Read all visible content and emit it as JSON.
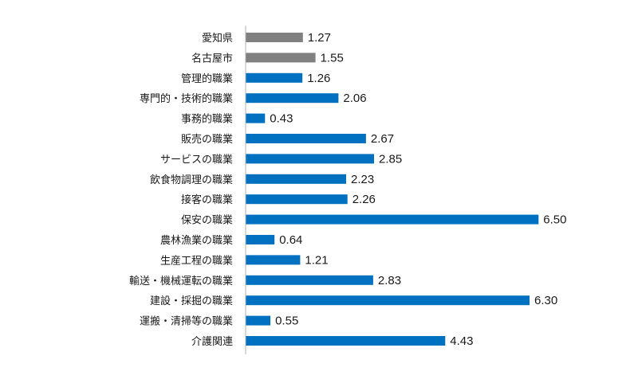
{
  "chart_data": {
    "type": "bar",
    "orientation": "horizontal",
    "categories": [
      "愛知県",
      "名古屋市",
      "管理的職業",
      "専門的・技術的職業",
      "事務的職業",
      "販売の職業",
      "サービスの職業",
      "飲食物調理の職業",
      "接客の職業",
      "保安の職業",
      "農林漁業の職業",
      "生産工程の職業",
      "輸送・機械運転の職業",
      "建設・採掘の職業",
      "運搬・清掃等の職業",
      "介護関連"
    ],
    "values": [
      1.27,
      1.55,
      1.26,
      2.06,
      0.43,
      2.67,
      2.85,
      2.23,
      2.26,
      6.5,
      0.64,
      1.21,
      2.83,
      6.3,
      0.55,
      4.43
    ],
    "value_labels": [
      "1.27",
      "1.55",
      "1.26",
      "2.06",
      "0.43",
      "2.67",
      "2.85",
      "2.23",
      "2.26",
      "6.50",
      "0.64",
      "1.21",
      "2.83",
      "6.30",
      "0.55",
      "4.43"
    ],
    "bar_colors": [
      "#808080",
      "#808080",
      "#0070c0",
      "#0070c0",
      "#0070c0",
      "#0070c0",
      "#0070c0",
      "#0070c0",
      "#0070c0",
      "#0070c0",
      "#0070c0",
      "#0070c0",
      "#0070c0",
      "#0070c0",
      "#0070c0",
      "#0070c0"
    ],
    "xlim": [
      0,
      7
    ],
    "title": "",
    "xlabel": "",
    "ylabel": "",
    "grid": false,
    "legend": "none"
  }
}
